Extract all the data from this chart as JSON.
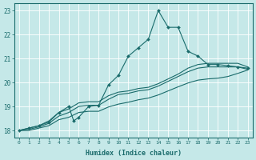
{
  "xlabel": "Humidex (Indice chaleur)",
  "bg_color": "#c5e8e8",
  "line_color": "#1a6b6b",
  "xlim": [
    -0.5,
    23.5
  ],
  "ylim": [
    17.7,
    23.3
  ],
  "yticks": [
    18,
    19,
    20,
    21,
    22,
    23
  ],
  "xticks": [
    0,
    1,
    2,
    3,
    4,
    5,
    6,
    7,
    8,
    9,
    10,
    11,
    12,
    13,
    14,
    15,
    16,
    17,
    18,
    19,
    20,
    21,
    22,
    23
  ],
  "s1_x": [
    0,
    1,
    2,
    3,
    4,
    5,
    5.5,
    6,
    7,
    8,
    9,
    10,
    11,
    12,
    13,
    14,
    15,
    16,
    17,
    18,
    19,
    20,
    21,
    22,
    23
  ],
  "s1_y": [
    18.0,
    18.1,
    18.2,
    18.35,
    18.75,
    19.0,
    18.4,
    18.55,
    19.0,
    19.05,
    19.9,
    20.3,
    21.1,
    21.45,
    21.8,
    23.0,
    22.3,
    22.3,
    21.3,
    21.1,
    20.75,
    20.75,
    20.7,
    20.65,
    20.6
  ],
  "s2_x": [
    0,
    1,
    2,
    3,
    4,
    5,
    6,
    7,
    8,
    9,
    10,
    11,
    12,
    13,
    14,
    15,
    16,
    17,
    18,
    19,
    20,
    21,
    22,
    23
  ],
  "s2_y": [
    18.0,
    18.1,
    18.2,
    18.4,
    18.75,
    18.9,
    19.15,
    19.2,
    19.2,
    19.45,
    19.6,
    19.65,
    19.75,
    19.8,
    19.95,
    20.15,
    20.35,
    20.6,
    20.75,
    20.8,
    20.8,
    20.8,
    20.8,
    20.65
  ],
  "s3_x": [
    0,
    1,
    2,
    3,
    4,
    5,
    6,
    7,
    8,
    9,
    10,
    11,
    12,
    13,
    14,
    15,
    16,
    17,
    18,
    19,
    20,
    21,
    22,
    23
  ],
  "s3_y": [
    18.0,
    18.05,
    18.15,
    18.3,
    18.6,
    18.75,
    19.0,
    19.05,
    19.05,
    19.3,
    19.5,
    19.55,
    19.65,
    19.7,
    19.85,
    20.05,
    20.25,
    20.45,
    20.6,
    20.65,
    20.65,
    20.65,
    20.65,
    20.55
  ],
  "s4_x": [
    0,
    1,
    2,
    3,
    4,
    5,
    6,
    7,
    8,
    9,
    10,
    11,
    12,
    13,
    14,
    15,
    16,
    17,
    18,
    19,
    20,
    21,
    22,
    23
  ],
  "s4_y": [
    18.0,
    18.0,
    18.1,
    18.2,
    18.45,
    18.55,
    18.75,
    18.8,
    18.8,
    18.98,
    19.1,
    19.18,
    19.28,
    19.35,
    19.48,
    19.65,
    19.82,
    19.98,
    20.1,
    20.15,
    20.18,
    20.25,
    20.38,
    20.52
  ]
}
